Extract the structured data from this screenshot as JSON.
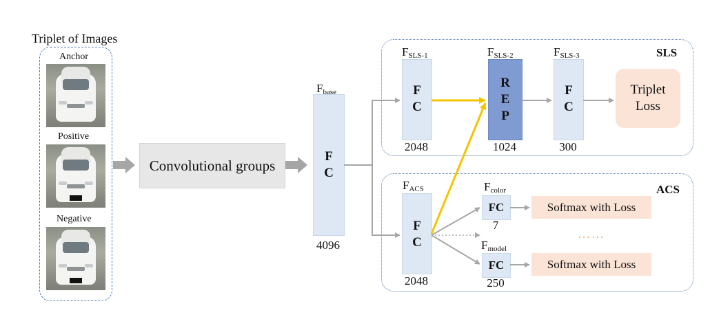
{
  "triplet": {
    "title": "Triplet of Images",
    "anchor": "Anchor",
    "positive": "Positive",
    "negative": "Negative"
  },
  "conv": {
    "label": "Convolutional groups"
  },
  "base": {
    "label_main": "F",
    "label_sub": "base",
    "line1": "F",
    "line2": "C",
    "size": "4096"
  },
  "sls": {
    "title": "SLS",
    "fc1": {
      "label_main": "F",
      "label_sub": "SLS-1",
      "line1": "F",
      "line2": "C",
      "size": "2048"
    },
    "rep": {
      "label_main": "F",
      "label_sub": "SLS-2",
      "line1": "R",
      "line2": "E",
      "line3": "P",
      "size": "1024"
    },
    "fc3": {
      "label_main": "F",
      "label_sub": "SLS-3",
      "line1": "F",
      "line2": "C",
      "size": "300"
    },
    "loss_line1": "Triplet",
    "loss_line2": "Loss"
  },
  "acs": {
    "title": "ACS",
    "fc": {
      "label_main": "F",
      "label_sub": "ACS",
      "line1": "F",
      "line2": "C",
      "size": "2048"
    },
    "color": {
      "label_main": "F",
      "label_sub": "color",
      "text": "FC",
      "size": "7"
    },
    "model": {
      "label_main": "F",
      "label_sub": "model",
      "text": "FC",
      "size": "250"
    },
    "softmax1": "Softmax with Loss",
    "softmax2": "Softmax with Loss",
    "ellipsis": "……"
  },
  "colors": {
    "fc_fill": "#dde8f4",
    "rep_fill": "#7f9bd1",
    "loss_fill": "#fbe3d6",
    "conv_fill": "#e7e7e7",
    "yellow_arrow": "#f5c400",
    "gray_arrow": "#a6a6a6",
    "group_border": "#4a7ab8",
    "ellipsis": "#f0a86b"
  }
}
